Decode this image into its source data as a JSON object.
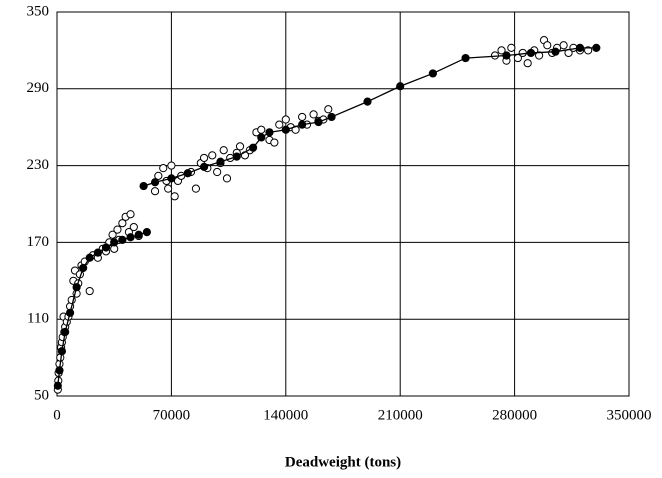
{
  "chart_data": {
    "type": "scatter",
    "x_label": "Deadweight (tons)",
    "xlim": [
      0,
      350000
    ],
    "xticks": [
      0,
      70000,
      140000,
      210000,
      280000,
      350000
    ],
    "ylim": [
      50,
      350
    ],
    "yticks": [
      50,
      110,
      170,
      230,
      290,
      350
    ],
    "grid": true,
    "series": [
      {
        "color": "#ffffff",
        "line": false,
        "x": [
          500,
          800,
          1000,
          1500,
          2000,
          2500,
          3000,
          3500,
          4000,
          4500,
          5000,
          6000,
          7000,
          8000,
          9000,
          10000,
          11000,
          12000,
          13000,
          14000,
          15000,
          17000,
          20000,
          22000,
          25000,
          28000,
          30000,
          32000,
          34000,
          35000,
          37000,
          38000,
          40000,
          42000,
          44000,
          45000,
          47000,
          50000,
          60000,
          62000,
          65000,
          67000,
          68000,
          70000,
          72000,
          74000,
          76000,
          82000,
          85000,
          88000,
          90000,
          92000,
          95000,
          98000,
          100000,
          102000,
          104000,
          106000,
          110000,
          112000,
          115000,
          118000,
          122000,
          125000,
          130000,
          133000,
          136000,
          140000,
          143000,
          146000,
          150000,
          153000,
          157000,
          160000,
          163000,
          166000,
          268000,
          272000,
          275000,
          278000,
          282000,
          285000,
          288000,
          292000,
          295000,
          298000,
          300000,
          303000,
          306000,
          310000,
          313000,
          316000,
          320000,
          325000
        ],
        "values": [
          55,
          62,
          68,
          75,
          80,
          88,
          92,
          96,
          112,
          100,
          104,
          108,
          112,
          120,
          125,
          140,
          148,
          130,
          138,
          145,
          152,
          155,
          132,
          160,
          158,
          165,
          163,
          170,
          176,
          165,
          180,
          172,
          185,
          190,
          178,
          192,
          182,
          175,
          210,
          222,
          228,
          218,
          212,
          230,
          206,
          218,
          222,
          225,
          212,
          232,
          236,
          228,
          238,
          225,
          232,
          242,
          220,
          236,
          240,
          245,
          238,
          242,
          256,
          258,
          250,
          248,
          262,
          266,
          260,
          258,
          268,
          262,
          270,
          265,
          266,
          274,
          316,
          320,
          312,
          322,
          314,
          318,
          310,
          320,
          316,
          328,
          324,
          318,
          322,
          324,
          318,
          322,
          320,
          320
        ]
      },
      {
        "color": "#000000",
        "line": true,
        "x": [
          500,
          1500,
          3000,
          5000,
          8000,
          12000,
          16000,
          20000,
          25000,
          30000,
          35000,
          40000,
          45000,
          50000,
          55000,
          54000,
          53000,
          60000,
          70000,
          80000,
          90000,
          100000,
          110000,
          120000,
          125000,
          130000,
          140000,
          150000,
          160000,
          168000,
          190000,
          210000,
          230000,
          250000,
          275000,
          290000,
          305000,
          320000,
          330000
        ],
        "values": [
          58,
          70,
          85,
          100,
          115,
          135,
          150,
          158,
          162,
          166,
          170,
          172,
          174,
          176,
          178,
          null,
          214,
          217,
          220,
          224,
          229,
          233,
          237,
          244,
          252,
          256,
          258,
          262,
          264,
          268,
          280,
          292,
          302,
          314,
          316,
          318,
          319,
          322,
          322
        ]
      }
    ]
  }
}
